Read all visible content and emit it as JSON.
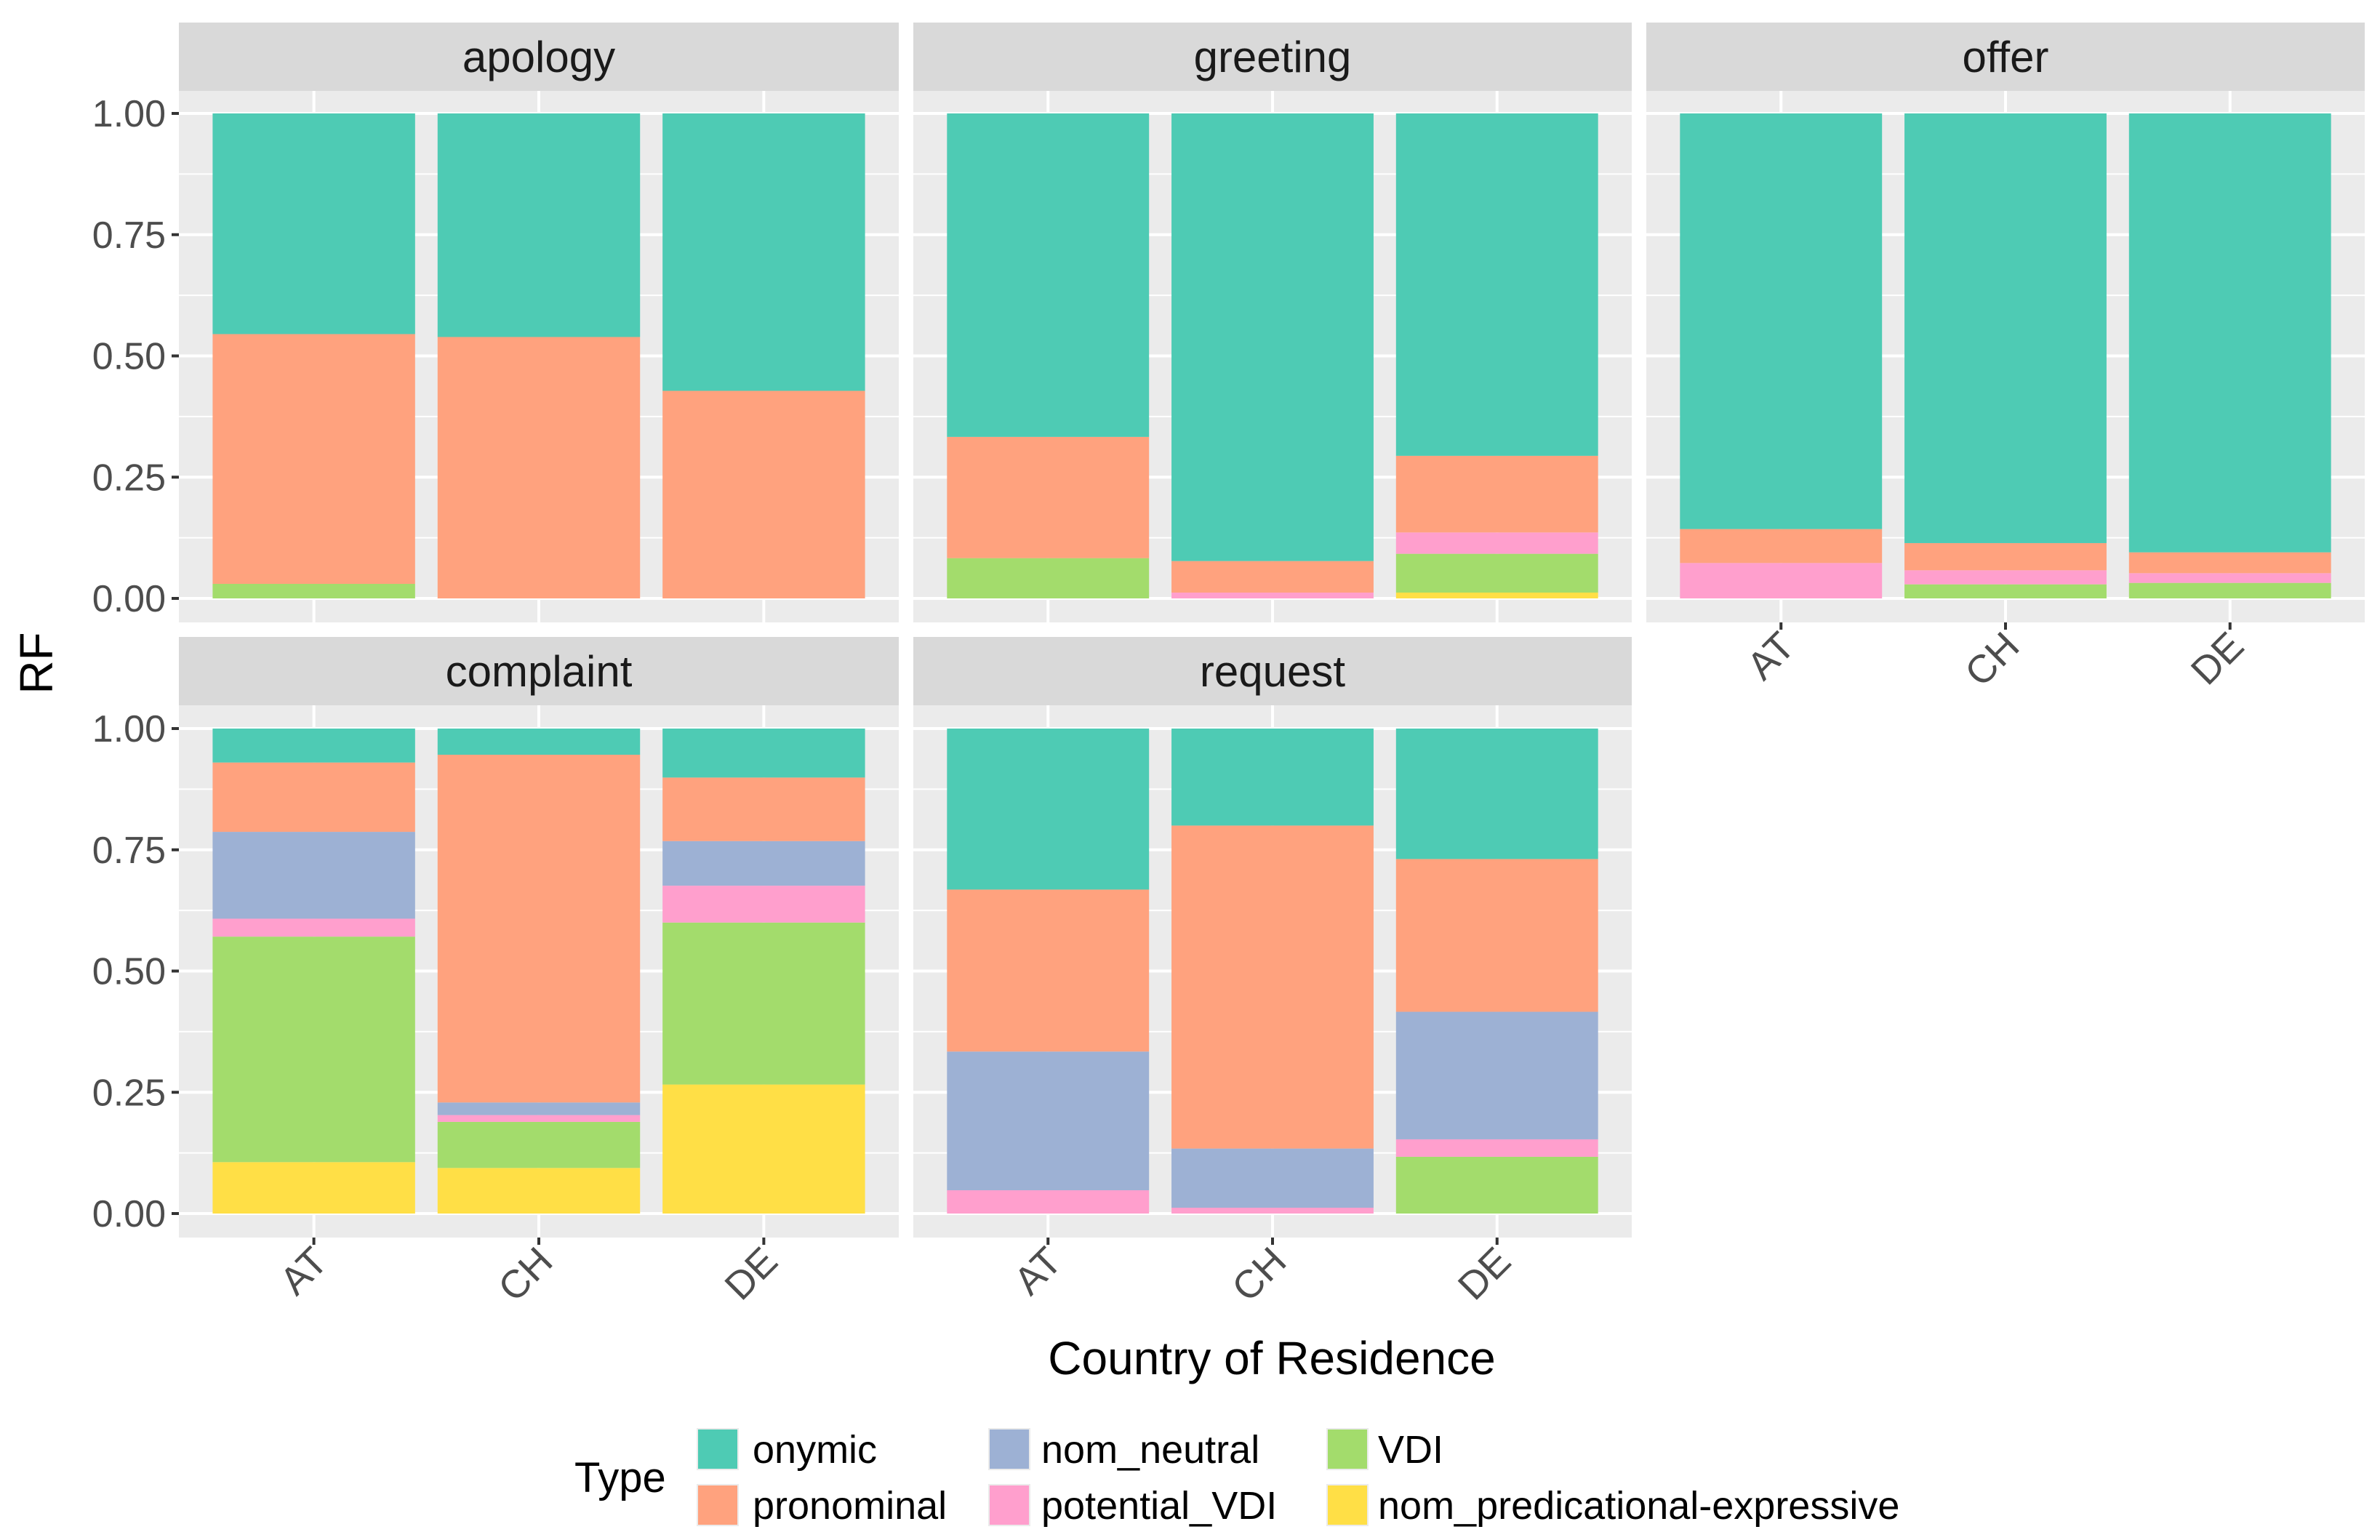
{
  "chart_data": {
    "type": "bar",
    "stacked": true,
    "xlabel": "Country of Residence",
    "ylabel": "RF",
    "ylim": [
      0,
      1
    ],
    "yticks": [
      "0.00",
      "0.25",
      "0.50",
      "0.75",
      "1.00"
    ],
    "categories": [
      "AT",
      "CH",
      "DE"
    ],
    "grid": true,
    "legend": {
      "title": "Type",
      "placement": "bottom",
      "entries": [
        "onymic",
        "pronominal",
        "nom_neutral",
        "potential_VDI",
        "VDI",
        "nom_predicational-expressive"
      ]
    },
    "colors": {
      "onymic": "#4ecbb4",
      "pronominal": "#ffa27e",
      "nom_neutral": "#9db1d4",
      "potential_VDI": "#ff9fcd",
      "VDI": "#a3dc6c",
      "nom_predicational-expressive": "#ffdf46"
    },
    "stack_order_bottom_to_top": [
      "nom_predicational-expressive",
      "VDI",
      "potential_VDI",
      "nom_neutral",
      "pronominal",
      "onymic"
    ],
    "panels": [
      {
        "name": "apology",
        "series": {
          "onymic": [
            0.455,
            0.461,
            0.572
          ],
          "pronominal": [
            0.515,
            0.539,
            0.428
          ],
          "nom_neutral": [
            0,
            0,
            0
          ],
          "potential_VDI": [
            0,
            0,
            0
          ],
          "VDI": [
            0.03,
            0,
            0
          ],
          "nom_predicational-expressive": [
            0,
            0,
            0
          ]
        }
      },
      {
        "name": "greeting",
        "series": {
          "onymic": [
            0.667,
            0.923,
            0.706
          ],
          "pronominal": [
            0.25,
            0.065,
            0.158
          ],
          "nom_neutral": [
            0,
            0,
            0
          ],
          "potential_VDI": [
            0,
            0.012,
            0.044
          ],
          "VDI": [
            0.083,
            0,
            0.08
          ],
          "nom_predicational-expressive": [
            0,
            0,
            0.012
          ]
        }
      },
      {
        "name": "offer",
        "series": {
          "onymic": [
            0.857,
            0.886,
            0.905
          ],
          "pronominal": [
            0.07,
            0.056,
            0.043
          ],
          "nom_neutral": [
            0,
            0,
            0
          ],
          "potential_VDI": [
            0.073,
            0.029,
            0.02
          ],
          "VDI": [
            0,
            0.029,
            0.032
          ],
          "nom_predicational-expressive": [
            0,
            0,
            0
          ]
        }
      },
      {
        "name": "complaint",
        "series": {
          "onymic": [
            0.07,
            0.054,
            0.101
          ],
          "pronominal": [
            0.143,
            0.717,
            0.131
          ],
          "nom_neutral": [
            0.179,
            0.026,
            0.092
          ],
          "potential_VDI": [
            0.037,
            0.014,
            0.076
          ],
          "VDI": [
            0.465,
            0.095,
            0.334
          ],
          "nom_predicational-expressive": [
            0.106,
            0.094,
            0.266
          ]
        }
      },
      {
        "name": "request",
        "series": {
          "onymic": [
            0.332,
            0.2,
            0.269
          ],
          "pronominal": [
            0.334,
            0.666,
            0.315
          ],
          "nom_neutral": [
            0.286,
            0.122,
            0.263
          ],
          "potential_VDI": [
            0.048,
            0.012,
            0.036
          ],
          "VDI": [
            0,
            0,
            0.117
          ],
          "nom_predicational-expressive": [
            0,
            0,
            0
          ]
        }
      }
    ]
  }
}
